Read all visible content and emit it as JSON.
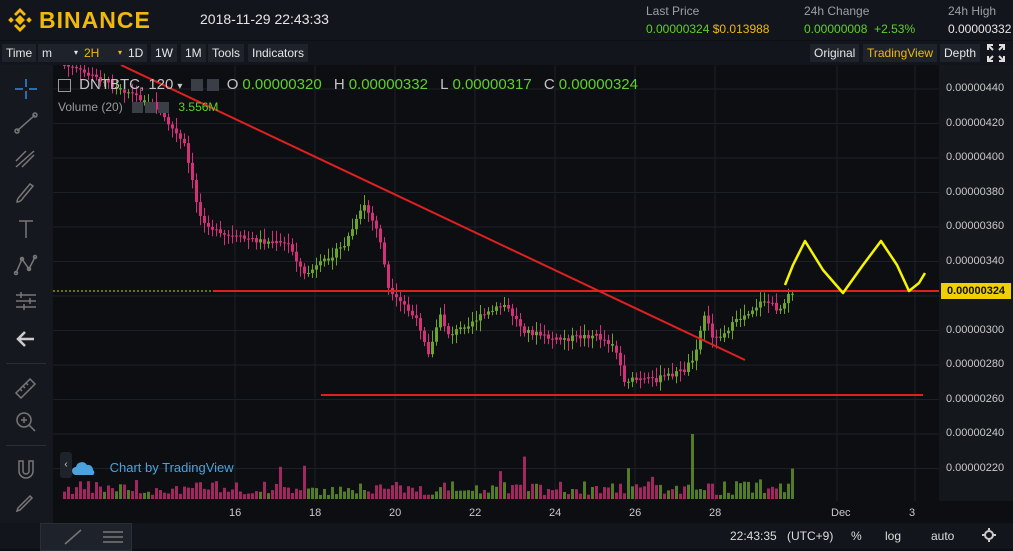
{
  "header": {
    "brand": "BINANCE",
    "datetime": "2018-11-29 22:43:33",
    "last_price": {
      "label": "Last Price",
      "value": "0.00000324",
      "usd": "$0.013988"
    },
    "change": {
      "label": "24h Change",
      "value": "0.00000008",
      "pct": "+2.53%"
    },
    "high": {
      "label": "24h High",
      "value": "0.00000332"
    }
  },
  "toolbar": {
    "time": "Time",
    "m": "m",
    "interval": "2H",
    "d1": "1D",
    "w1": "1W",
    "mo1": "1M",
    "tools": "Tools",
    "indicators": "Indicators",
    "original": "Original",
    "tradingview": "TradingView",
    "depth": "Depth"
  },
  "legend": {
    "symbol": "DNTBTC, 120",
    "o_label": "O",
    "o": "0.00000320",
    "h_label": "H",
    "h": "0.00000332",
    "l_label": "L",
    "l": "0.00000317",
    "c_label": "C",
    "c": "0.00000324",
    "volume_label": "Volume (20)",
    "volume_value": "3.556M"
  },
  "watermark": "Chart by TradingView",
  "y_axis": [
    "0.00000440",
    "0.00000420",
    "0.00000400",
    "0.00000380",
    "0.00000360",
    "0.00000340",
    "0.00000320",
    "0.00000300",
    "0.00000280",
    "0.00000260",
    "0.00000240",
    "0.00000220"
  ],
  "price_tag": "0.00000324",
  "x_axis": [
    "16",
    "18",
    "20",
    "22",
    "24",
    "26",
    "28",
    "Dec",
    "3"
  ],
  "bottom": {
    "time": "22:43:35",
    "tz": "(UTC+9)",
    "pct": "%",
    "log": "log",
    "auto": "auto"
  },
  "colors": {
    "up": "#6ca22e",
    "down": "#d3307a",
    "accent": "#f0b90b",
    "trend": "#e02020",
    "annot": "#f5f500"
  }
}
